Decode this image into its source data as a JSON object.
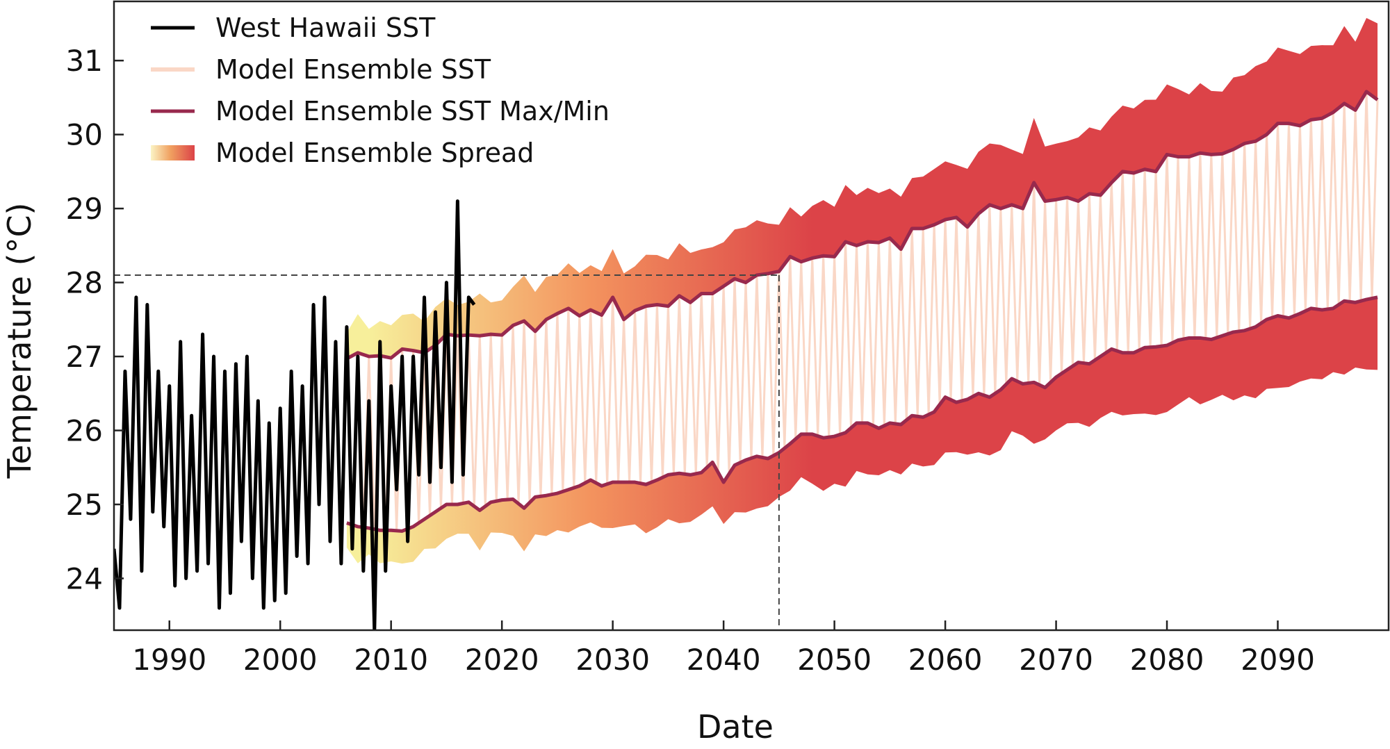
{
  "chart_data": {
    "type": "line",
    "title": "",
    "xlabel": "Date",
    "ylabel": "Temperature (°C)",
    "xlim": [
      1985,
      2100
    ],
    "ylim": [
      23.3,
      31.8
    ],
    "x_ticks": [
      1990,
      2000,
      2010,
      2020,
      2030,
      2040,
      2050,
      2060,
      2070,
      2080,
      2090
    ],
    "y_ticks": [
      24,
      25,
      26,
      27,
      28,
      29,
      30,
      31
    ],
    "grid": false,
    "legend_position": "top-left",
    "reference_lines": {
      "year": 2045,
      "temperature": 28.1
    },
    "colors": {
      "observed": "#000000",
      "ensemble_sst": "#fad7c6",
      "max_min": "#98294d",
      "spread_start": "#f7ef9b",
      "spread_mid": "#f3935e",
      "spread_end": "#dc4348"
    },
    "legend": [
      {
        "key": "observed",
        "label": "West Hawaii SST"
      },
      {
        "key": "ensemble",
        "label": "Model Ensemble SST"
      },
      {
        "key": "maxmin",
        "label": "Model Ensemble SST Max/Min"
      },
      {
        "key": "spread",
        "label": "Model Ensemble Spread"
      }
    ],
    "series": [
      {
        "key": "observed",
        "name": "West Hawaii SST",
        "x": [
          1985.0,
          1985.5,
          1986.0,
          1986.5,
          1987.0,
          1987.5,
          1988.0,
          1988.5,
          1989.0,
          1989.5,
          1990.0,
          1990.5,
          1991.0,
          1991.5,
          1992.0,
          1992.5,
          1993.0,
          1993.5,
          1994.0,
          1994.5,
          1995.0,
          1995.5,
          1996.0,
          1996.5,
          1997.0,
          1997.5,
          1998.0,
          1998.5,
          1999.0,
          1999.5,
          2000.0,
          2000.5,
          2001.0,
          2001.5,
          2002.0,
          2002.5,
          2003.0,
          2003.5,
          2004.0,
          2004.5,
          2005.0,
          2005.5,
          2006.0,
          2006.5,
          2007.0,
          2007.5,
          2008.0,
          2008.5,
          2009.0,
          2009.5,
          2010.0,
          2010.5,
          2011.0,
          2011.5,
          2012.0,
          2012.5,
          2013.0,
          2013.5,
          2014.0,
          2014.5,
          2015.0,
          2015.5,
          2016.0,
          2016.5,
          2017.0,
          2017.5
        ],
        "y": [
          24.4,
          23.6,
          26.8,
          24.8,
          27.8,
          24.1,
          27.7,
          24.9,
          26.8,
          24.7,
          26.6,
          23.9,
          27.2,
          24.0,
          26.2,
          24.1,
          27.3,
          24.2,
          27.0,
          23.6,
          26.8,
          23.8,
          26.9,
          24.5,
          27.0,
          24.0,
          26.4,
          23.6,
          26.1,
          23.7,
          26.3,
          23.8,
          26.8,
          24.3,
          26.6,
          24.2,
          27.7,
          25.0,
          27.8,
          24.5,
          27.2,
          24.2,
          27.4,
          24.4,
          27.0,
          24.1,
          26.4,
          23.3,
          27.2,
          24.1,
          26.6,
          25.2,
          27.0,
          24.5,
          27.0,
          25.4,
          27.8,
          25.3,
          27.6,
          25.5,
          28.0,
          25.3,
          29.1,
          25.4,
          27.8,
          27.7
        ]
      },
      {
        "key": "ensemble",
        "name": "Model Ensemble SST",
        "x_start": 2006,
        "x_end": 2099,
        "values_high": [
          26.97,
          27.05,
          27.0,
          27.01,
          26.98,
          27.1,
          27.08,
          27.05,
          27.15,
          27.3,
          27.28,
          27.29,
          27.28,
          27.3,
          27.29,
          27.42,
          27.48,
          27.34,
          27.5,
          27.58,
          27.65,
          27.55,
          27.63,
          27.56,
          27.8,
          27.5,
          27.62,
          27.68,
          27.7,
          27.68,
          27.82,
          27.73,
          27.85,
          27.85,
          27.95,
          28.05,
          28.0,
          28.1,
          28.12,
          28.15,
          28.35,
          28.28,
          28.33,
          28.36,
          28.35,
          28.55,
          28.5,
          28.55,
          28.54,
          28.6,
          28.45,
          28.73,
          28.73,
          28.78,
          28.85,
          28.88,
          28.75,
          28.93,
          29.05,
          29.0,
          29.05,
          29.0,
          29.35,
          29.1,
          29.12,
          29.15,
          29.1,
          29.2,
          29.18,
          29.35,
          29.5,
          29.48,
          29.53,
          29.5,
          29.73,
          29.7,
          29.7,
          29.75,
          29.73,
          29.74,
          29.8,
          29.88,
          29.91,
          30.0,
          30.15,
          30.15,
          30.12,
          30.2,
          30.22,
          30.3,
          30.42,
          30.33,
          30.58,
          30.47
        ],
        "values_low": [
          24.75,
          24.7,
          24.68,
          24.65,
          24.65,
          24.64,
          24.7,
          24.8,
          24.9,
          25.0,
          25.0,
          25.03,
          24.92,
          25.03,
          25.06,
          25.07,
          24.95,
          25.1,
          25.12,
          25.15,
          25.2,
          25.25,
          25.33,
          25.25,
          25.3,
          25.3,
          25.3,
          25.27,
          25.33,
          25.4,
          25.42,
          25.4,
          25.43,
          25.57,
          25.3,
          25.53,
          25.6,
          25.65,
          25.62,
          25.7,
          25.82,
          25.95,
          25.95,
          25.9,
          25.92,
          25.97,
          26.1,
          26.1,
          26.03,
          26.1,
          26.08,
          26.2,
          26.18,
          26.25,
          26.45,
          26.38,
          26.42,
          26.5,
          26.45,
          26.55,
          26.7,
          26.63,
          26.65,
          26.58,
          26.72,
          26.82,
          26.92,
          26.9,
          27.0,
          27.1,
          27.05,
          27.05,
          27.12,
          27.13,
          27.15,
          27.22,
          27.25,
          27.25,
          27.23,
          27.28,
          27.33,
          27.35,
          27.4,
          27.5,
          27.55,
          27.52,
          27.58,
          27.65,
          27.63,
          27.65,
          27.75,
          27.73,
          27.77,
          27.8
        ]
      }
    ]
  }
}
